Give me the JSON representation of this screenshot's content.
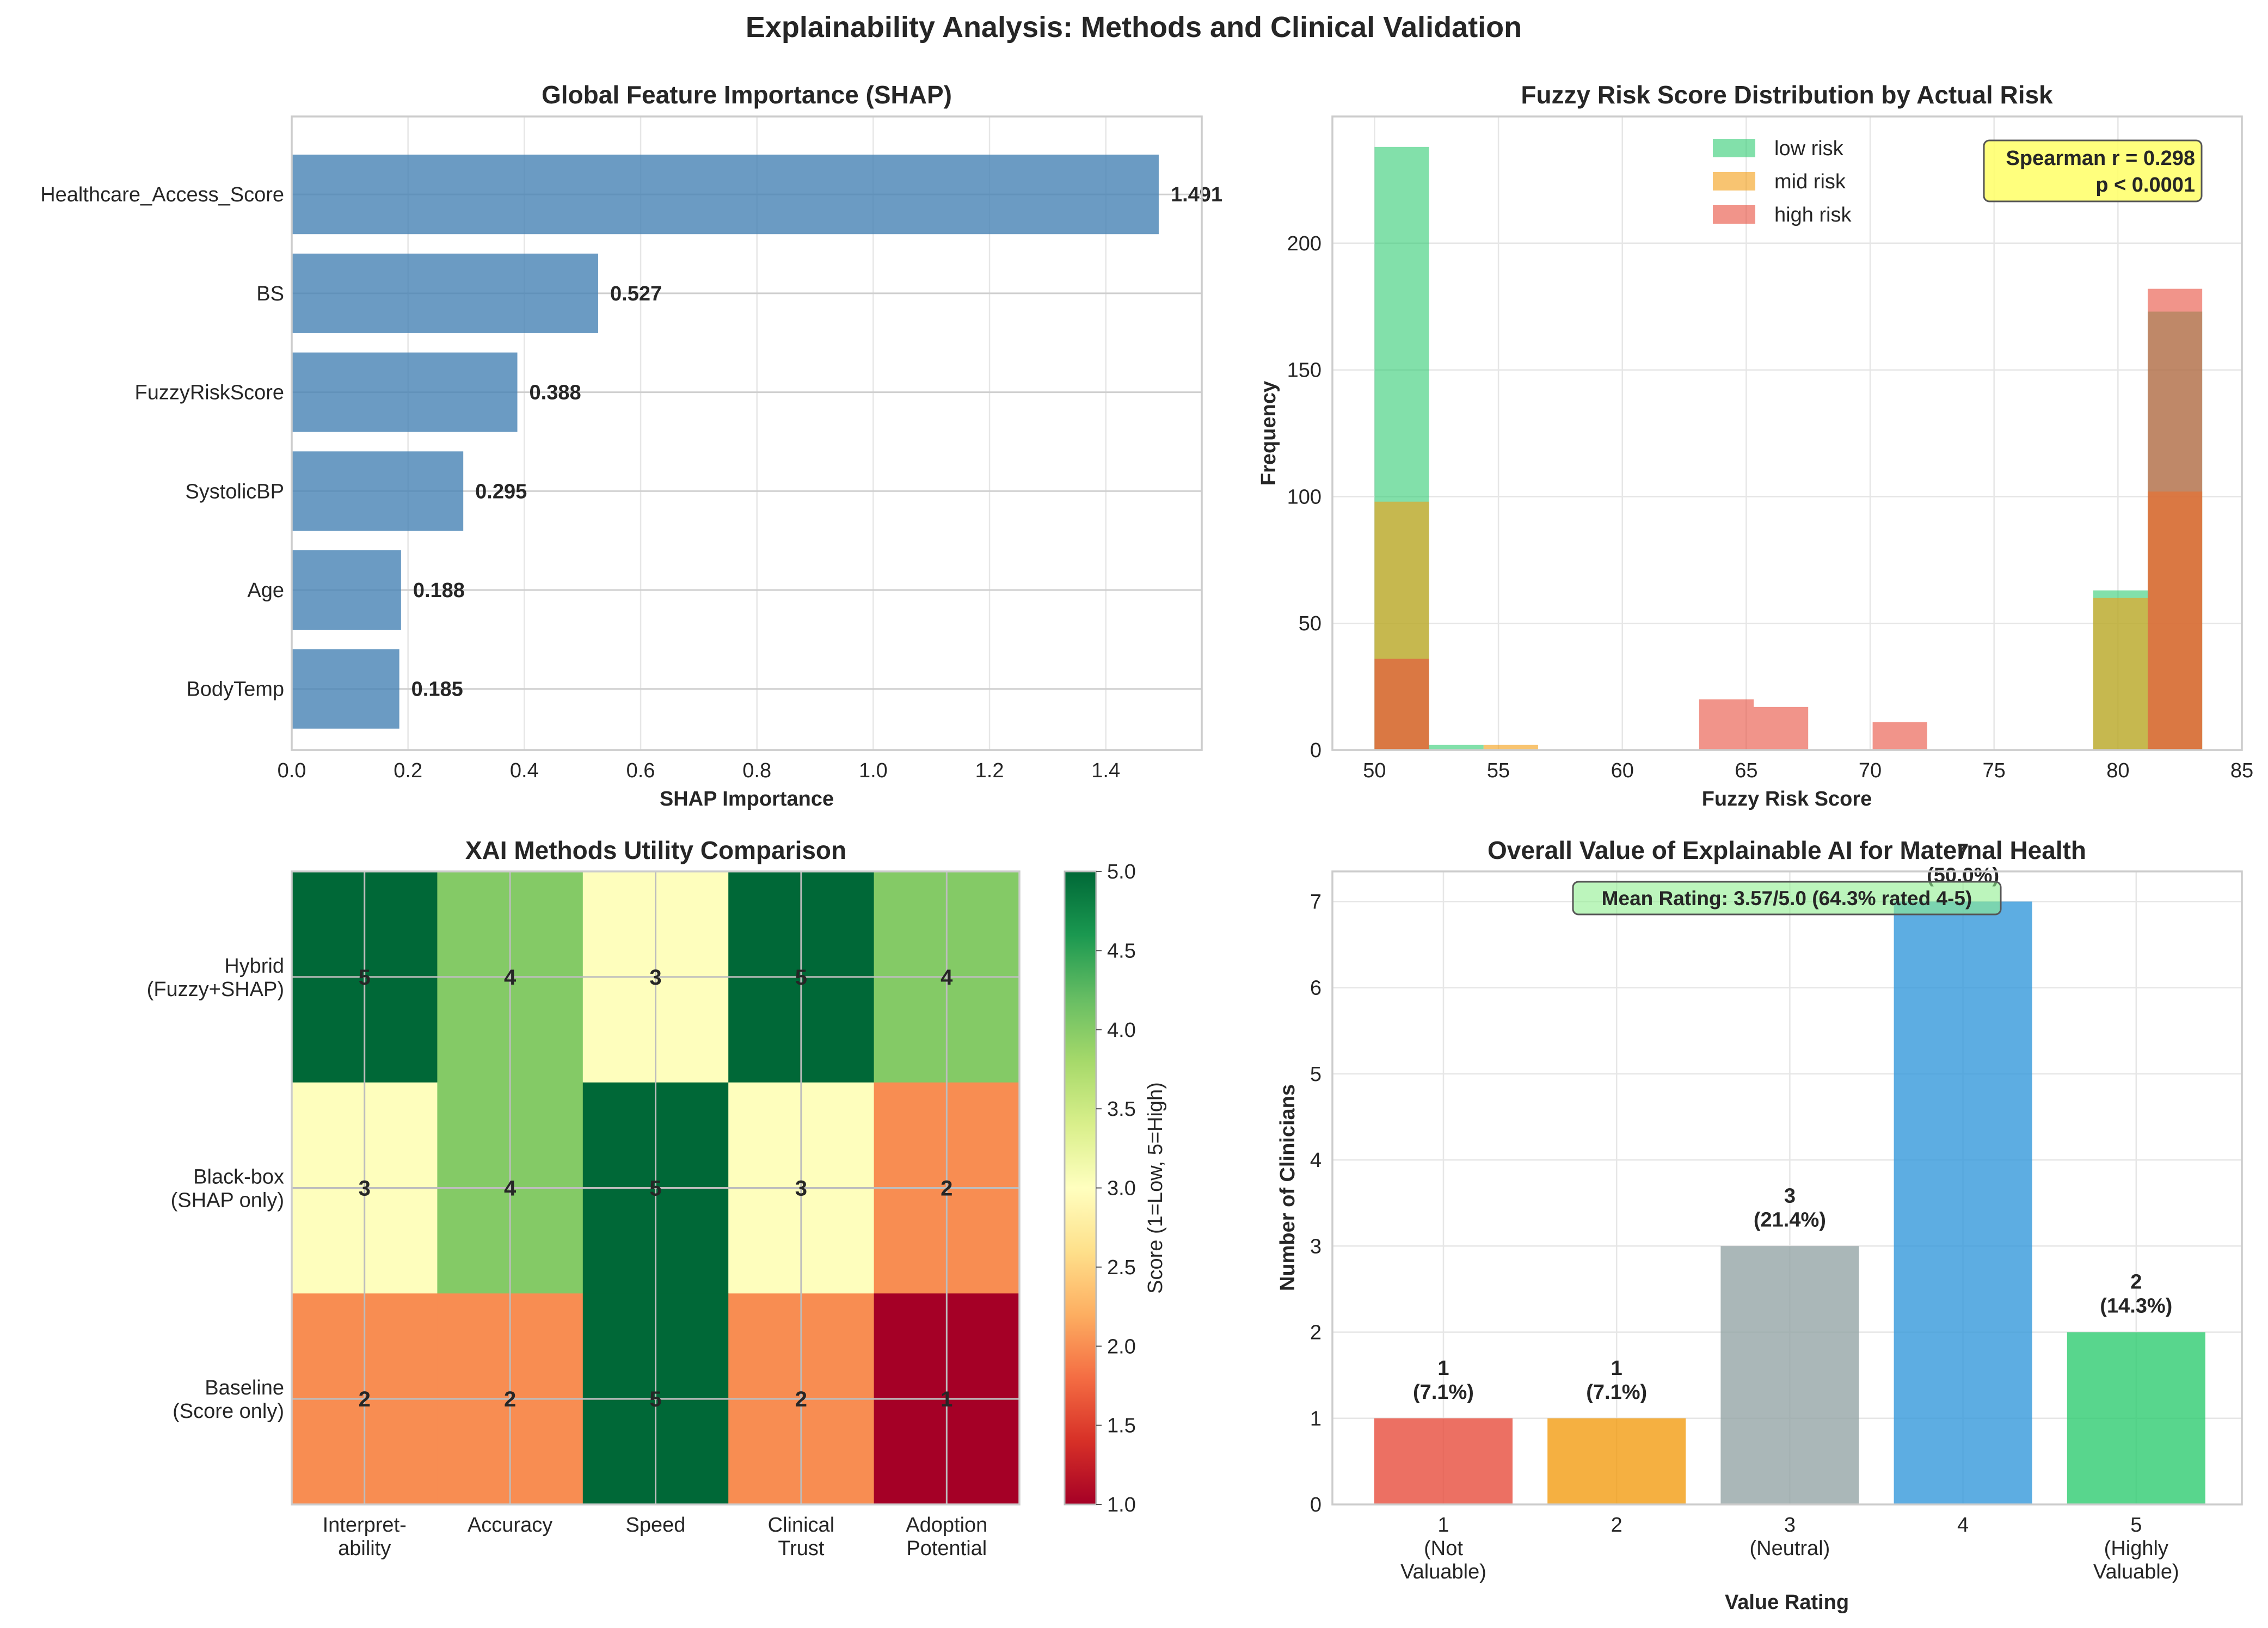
{
  "figure_title": "Explainability Analysis: Methods and Clinical Validation",
  "chart_data": [
    {
      "type": "bar",
      "orientation": "horizontal",
      "title": "Global Feature Importance (SHAP)",
      "xlabel": "SHAP Importance",
      "ylabel": "",
      "categories": [
        "Healthcare_Access_Score",
        "BS",
        "FuzzyRiskScore",
        "SystolicBP",
        "Age",
        "BodyTemp"
      ],
      "values": [
        1.491,
        0.527,
        0.388,
        0.295,
        0.188,
        0.185
      ],
      "value_labels": [
        "1.491",
        "0.527",
        "0.388",
        "0.295",
        "0.188",
        "0.185"
      ],
      "xlim": [
        0,
        1.565
      ],
      "xticks": [
        0.0,
        0.2,
        0.4,
        0.6,
        0.8,
        1.0,
        1.2,
        1.4
      ],
      "xtick_labels": [
        "0.0",
        "0.2",
        "0.4",
        "0.6",
        "0.8",
        "1.0",
        "1.2",
        "1.4"
      ],
      "bar_color": "#4682b4"
    },
    {
      "type": "histogram",
      "title": "Fuzzy Risk Score Distribution by Actual Risk",
      "xlabel": "Fuzzy Risk Score",
      "ylabel": "Frequency",
      "xlim": [
        48.3,
        85.0
      ],
      "ylim": [
        0,
        250
      ],
      "xticks": [
        50,
        55,
        60,
        65,
        70,
        75,
        80,
        85
      ],
      "yticks": [
        0,
        50,
        100,
        150,
        200
      ],
      "legend_position": "top-center",
      "annotation": [
        "Spearman r = 0.298",
        "p < 0.0001"
      ],
      "series": [
        {
          "name": "low risk",
          "color": "#2ecc71",
          "opacity": 0.6,
          "bins": [
            [
              50.0,
              52.2,
              238
            ],
            [
              52.2,
              54.4,
              2
            ],
            [
              79.0,
              81.2,
              63
            ],
            [
              81.2,
              83.4,
              173
            ]
          ]
        },
        {
          "name": "mid risk",
          "color": "#f39c12",
          "opacity": 0.6,
          "bins": [
            [
              50.0,
              52.2,
              98
            ],
            [
              54.4,
              56.6,
              2
            ],
            [
              79.0,
              81.2,
              60
            ],
            [
              81.2,
              83.4,
              102
            ]
          ]
        },
        {
          "name": "high risk",
          "color": "#e74c3c",
          "opacity": 0.6,
          "bins": [
            [
              50.0,
              52.2,
              36
            ],
            [
              63.1,
              65.3,
              20
            ],
            [
              65.3,
              67.5,
              17
            ],
            [
              70.1,
              72.3,
              11
            ],
            [
              81.2,
              83.4,
              182
            ]
          ]
        }
      ]
    },
    {
      "type": "heatmap",
      "title": "XAI Methods Utility Comparison",
      "rows": [
        "Hybrid\n(Fuzzy+SHAP)",
        "Black-box\n(SHAP only)",
        "Baseline\n(Score only)"
      ],
      "columns": [
        "Interpret-\nability",
        "Accuracy",
        "Speed",
        "Clinical\nTrust",
        "Adoption\nPotential"
      ],
      "values": [
        [
          5,
          4,
          3,
          5,
          4
        ],
        [
          3,
          4,
          5,
          3,
          2
        ],
        [
          2,
          2,
          5,
          2,
          1
        ]
      ],
      "colorbar_label": "Score (1=Low, 5=High)",
      "colorbar_range": [
        1.0,
        5.0
      ],
      "colorbar_ticks": [
        "1.0",
        "1.5",
        "2.0",
        "2.5",
        "3.0",
        "3.5",
        "4.0",
        "4.5",
        "5.0"
      ],
      "colormap": "RdYlGn",
      "cell_colors": {
        "1": "#a50026",
        "2": "#f88d52",
        "3": "#fefebd",
        "4": "#84ca66",
        "5": "#006837"
      }
    },
    {
      "type": "bar",
      "title": "Overall Value of Explainable AI for Maternal Health",
      "xlabel": "Value Rating",
      "ylabel": "Number of Clinicians",
      "categories": [
        "1\n(Not\nValuable)",
        "2",
        "3\n(Neutral)",
        "4",
        "5\n(Highly\nValuable)"
      ],
      "values": [
        1,
        1,
        3,
        7,
        2
      ],
      "percent_labels": [
        "(7.1%)",
        "(7.1%)",
        "(21.4%)",
        "(50.0%)",
        "(14.3%)"
      ],
      "colors": [
        "#e74c3c",
        "#f39c12",
        "#95a5a6",
        "#3498db",
        "#2ecc71"
      ],
      "ylim": [
        0,
        7.35
      ],
      "yticks": [
        0,
        1,
        2,
        3,
        4,
        5,
        6,
        7
      ],
      "annotation": "Mean Rating: 3.57/5.0 (64.3% rated 4-5)"
    }
  ]
}
